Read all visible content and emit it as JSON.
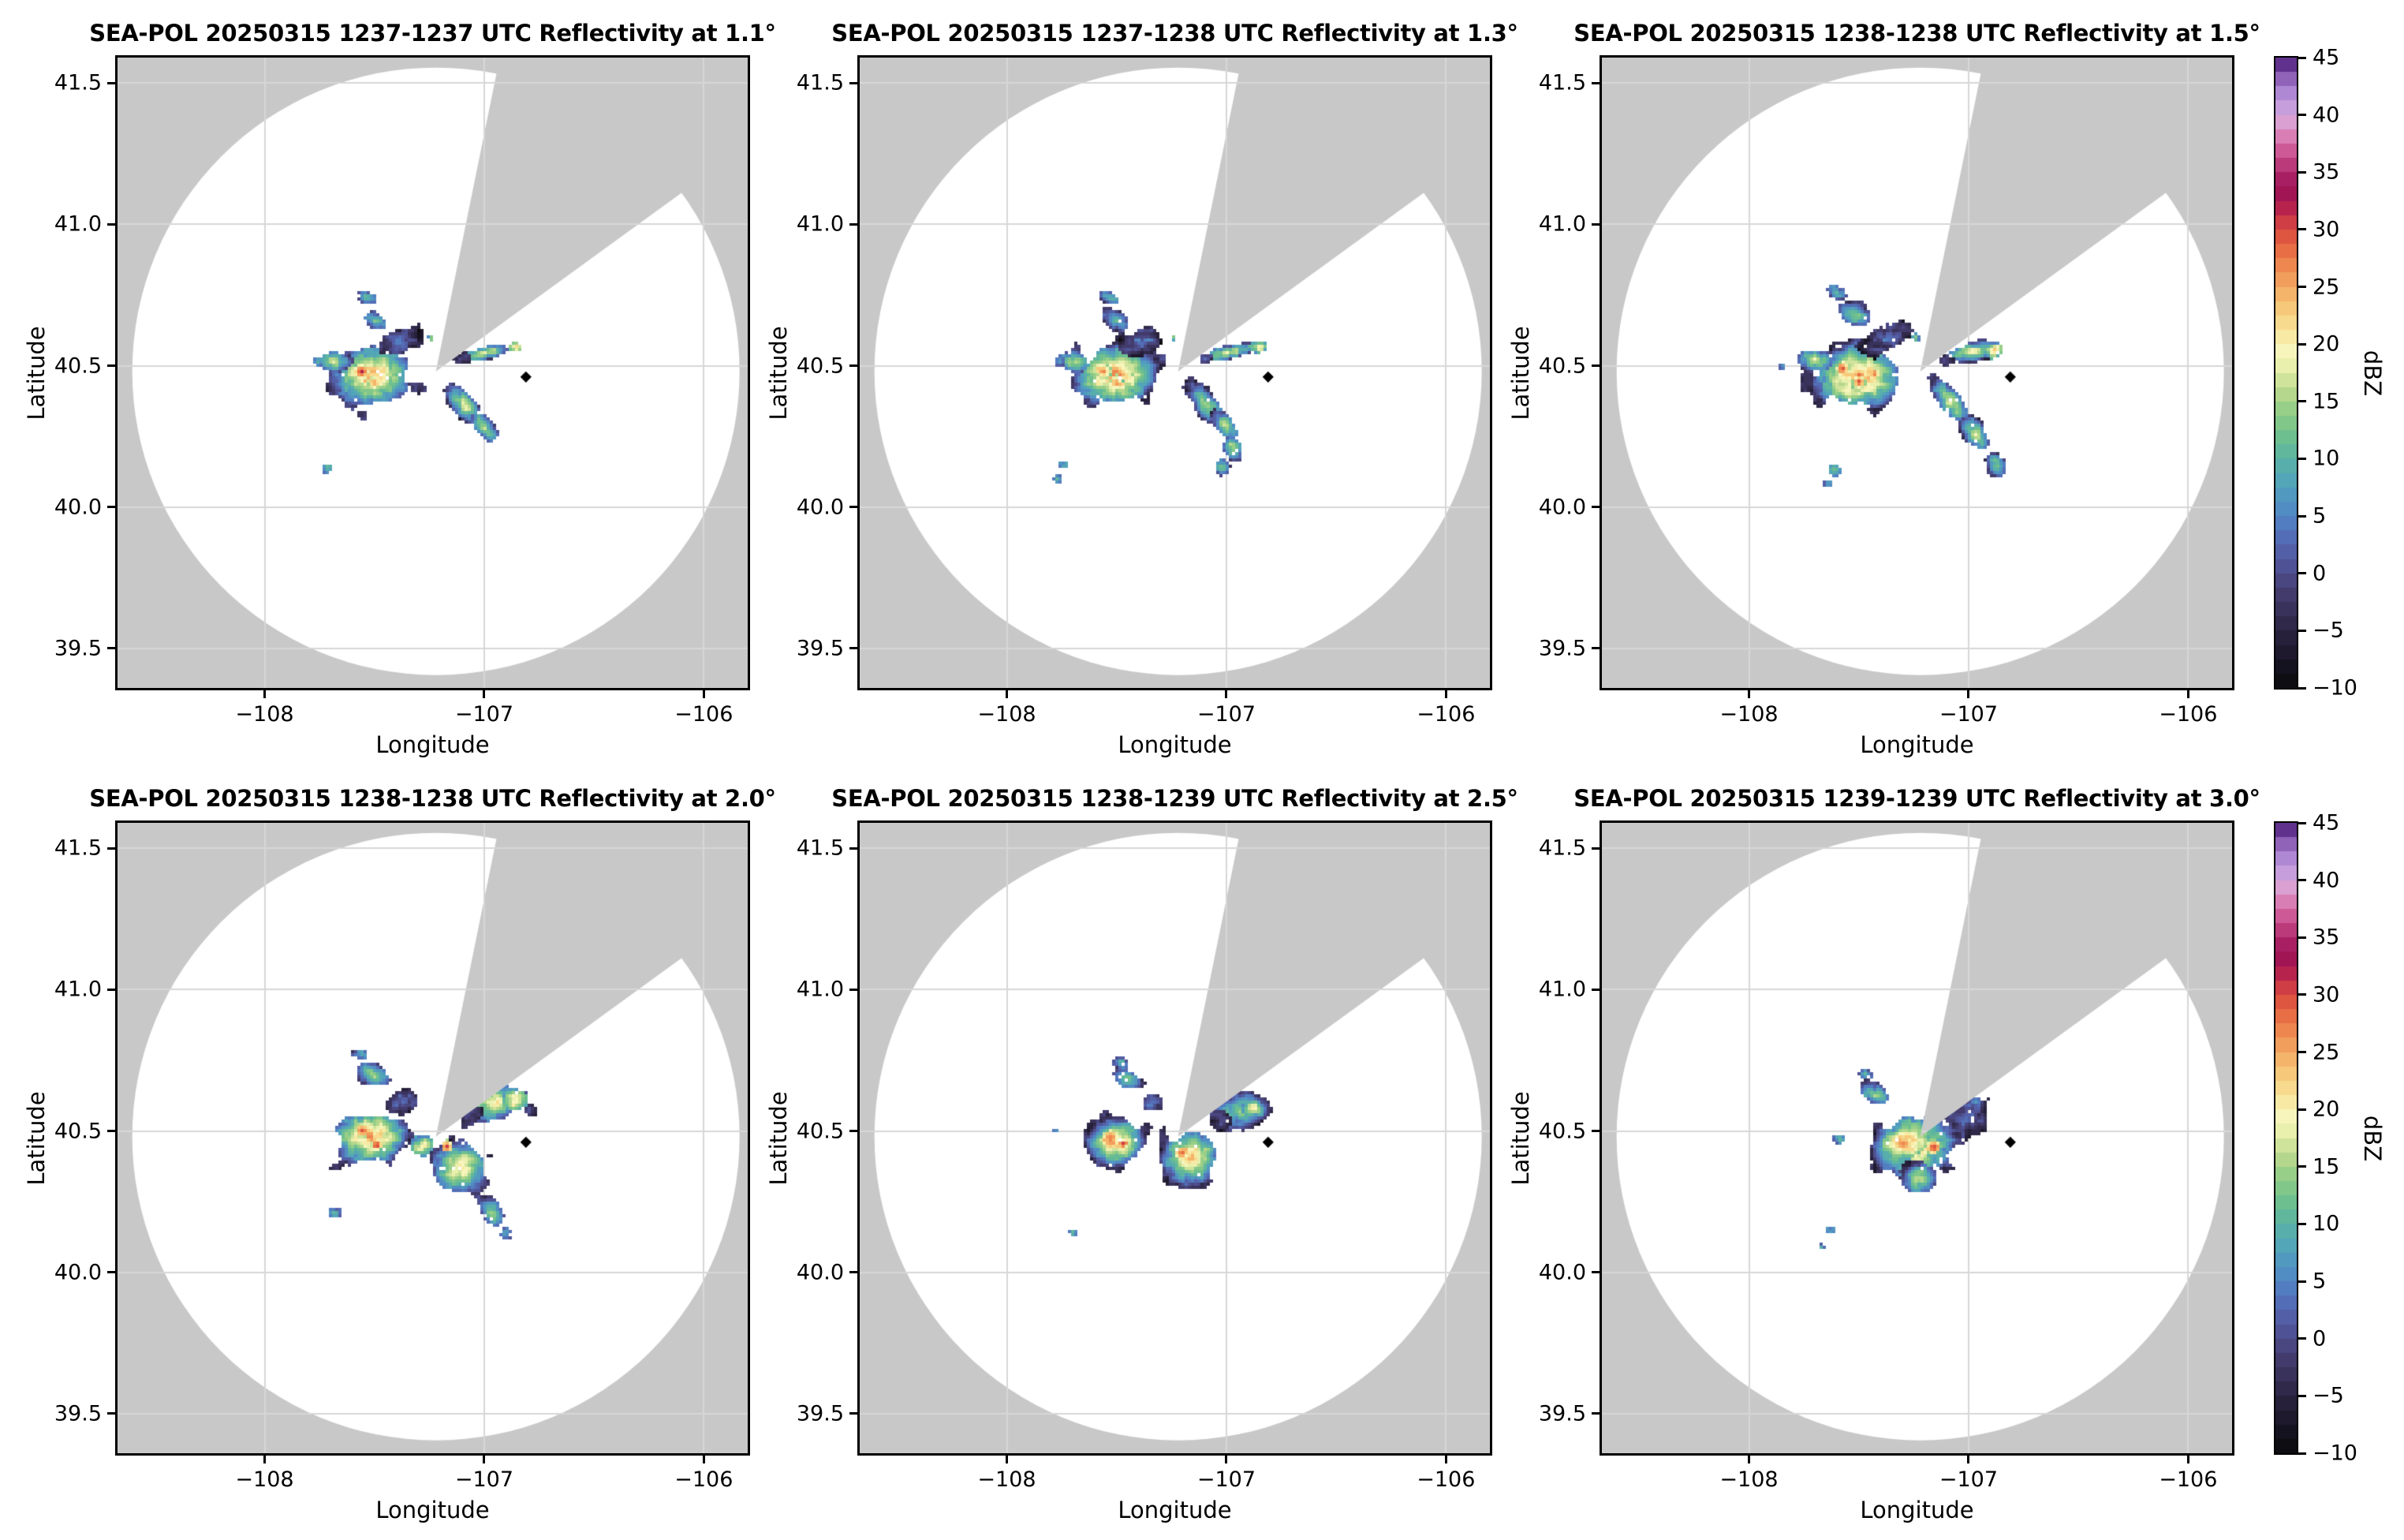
{
  "figure": {
    "background": "#ffffff",
    "outside_scan_color": "#c8c8c8",
    "grid_color": "#d7d7d7",
    "border_color": "#000000",
    "marker_color": "#000000"
  },
  "chart_data": {
    "type": "heatmap",
    "description": "2x3 grid of SEA-POL radar PPI reflectivity maps at increasing elevation angles; white circle is the scanned area on a gray background with a gray blocked sector to the north-northeast; scattered convective echoes west and southeast of a black site marker.",
    "axes": {
      "xlabel": "Longitude",
      "ylabel": "Latitude",
      "xlim": [
        -108.67,
        -105.8
      ],
      "ylim": [
        39.36,
        41.59
      ],
      "xticks": [
        {
          "v": -108,
          "label": "−108"
        },
        {
          "v": -107,
          "label": "−107"
        },
        {
          "v": -106,
          "label": "−106"
        }
      ],
      "yticks": [
        {
          "v": 39.5,
          "label": "39.5"
        },
        {
          "v": 40.0,
          "label": "40.0"
        },
        {
          "v": 40.5,
          "label": "40.5"
        },
        {
          "v": 41.0,
          "label": "41.0"
        },
        {
          "v": 41.5,
          "label": "41.5"
        }
      ],
      "grid": true
    },
    "radar": {
      "center_lon": -107.22,
      "center_lat": 40.48,
      "scan_radius_px": 385,
      "blocked_sector_azimuth_deg": [
        11.5,
        54
      ],
      "site_marker_lon": -106.81,
      "site_marker_lat": 40.46
    },
    "colormap": {
      "vmin": -10,
      "vmax": 45,
      "band_step": 1.25,
      "stops": [
        [
          -10,
          "#0a0a0a"
        ],
        [
          -8,
          "#161221"
        ],
        [
          -6,
          "#241e35"
        ],
        [
          -4,
          "#332b4e"
        ],
        [
          -2,
          "#413a69"
        ],
        [
          0,
          "#4d4b8b"
        ],
        [
          2,
          "#5360a8"
        ],
        [
          4,
          "#5379c0"
        ],
        [
          6,
          "#5090c4"
        ],
        [
          8,
          "#52a4b9"
        ],
        [
          10,
          "#5bb3a3"
        ],
        [
          12,
          "#6fc08e"
        ],
        [
          14,
          "#90cc86"
        ],
        [
          16,
          "#bcda8e"
        ],
        [
          18,
          "#e8eeaa"
        ],
        [
          19.5,
          "#f8f6bd"
        ],
        [
          21,
          "#f8e69c"
        ],
        [
          23,
          "#f6cb7c"
        ],
        [
          25,
          "#f3a962"
        ],
        [
          27,
          "#ed854e"
        ],
        [
          29,
          "#e25c3e"
        ],
        [
          30.5,
          "#d23f44"
        ],
        [
          32,
          "#b3224f"
        ],
        [
          33.5,
          "#9c1157"
        ],
        [
          35,
          "#b02b6c"
        ],
        [
          36.5,
          "#c94f8e"
        ],
        [
          38,
          "#d97bb2"
        ],
        [
          39.5,
          "#d9a3d4"
        ],
        [
          41,
          "#bf9cdf"
        ],
        [
          42.5,
          "#a379cc"
        ],
        [
          43.7,
          "#7e4fa8"
        ],
        [
          44.5,
          "#5b2d89"
        ],
        [
          45,
          "#3c1161"
        ]
      ]
    },
    "colorbar": {
      "label": "dBZ",
      "ticks": [
        {
          "v": 45,
          "label": "45"
        },
        {
          "v": 40,
          "label": "40"
        },
        {
          "v": 35,
          "label": "35"
        },
        {
          "v": 30,
          "label": "30"
        },
        {
          "v": 25,
          "label": "25"
        },
        {
          "v": 20,
          "label": "20"
        },
        {
          "v": 15,
          "label": "15"
        },
        {
          "v": 10,
          "label": "10"
        },
        {
          "v": 5,
          "label": "5"
        },
        {
          "v": 0,
          "label": "0"
        },
        {
          "v": -5,
          "label": "−5"
        },
        {
          "v": -10,
          "label": "−10"
        }
      ]
    },
    "blob_format": [
      "lon",
      "lat",
      "rx_deg",
      "ry_deg",
      "rot_deg",
      "peak_dbz",
      "fringe_dbz"
    ],
    "panels": [
      {
        "title": "SEA-POL 20250315 1237-1237 UTC Reflectivity at 1.1°",
        "elevation_deg": 1.1,
        "time_utc": "1237-1237",
        "date": "20250315",
        "seed": 11,
        "blobs": [
          [
            -107.51,
            40.465,
            0.2,
            0.115,
            -5,
            26,
            -3
          ],
          [
            -107.56,
            40.48,
            0.035,
            0.028,
            0,
            31,
            14
          ],
          [
            -107.5,
            40.44,
            0.03,
            0.024,
            0,
            30,
            14
          ],
          [
            -107.69,
            40.515,
            0.085,
            0.04,
            5,
            17,
            -2
          ],
          [
            -107.39,
            40.585,
            0.1,
            0.05,
            -25,
            4,
            -6
          ],
          [
            -107.5,
            40.66,
            0.065,
            0.032,
            25,
            13,
            -2
          ],
          [
            -107.53,
            40.74,
            0.05,
            0.022,
            20,
            12,
            -1
          ],
          [
            -107.76,
            40.515,
            0.022,
            0.018,
            0,
            9,
            2
          ],
          [
            -107.0,
            40.545,
            0.135,
            0.024,
            -12,
            19,
            -2
          ],
          [
            -107.09,
            40.525,
            0.035,
            0.022,
            -10,
            2,
            -5
          ],
          [
            -106.86,
            40.565,
            0.033,
            0.02,
            -10,
            22,
            8
          ],
          [
            -107.09,
            40.36,
            0.055,
            0.095,
            -38,
            18,
            -3
          ],
          [
            -107.0,
            40.285,
            0.05,
            0.075,
            -40,
            16,
            -3
          ],
          [
            -107.71,
            40.14,
            0.03,
            0.02,
            0,
            10,
            3
          ],
          [
            -107.24,
            40.6,
            0.016,
            0.014,
            0,
            14,
            6
          ]
        ]
      },
      {
        "title": "SEA-POL 20250315 1237-1238 UTC Reflectivity at 1.3°",
        "elevation_deg": 1.3,
        "time_utc": "1237-1238",
        "date": "20250315",
        "seed": 22,
        "blobs": [
          [
            -107.51,
            40.465,
            0.2,
            0.115,
            -5,
            27,
            -3
          ],
          [
            -107.56,
            40.48,
            0.035,
            0.028,
            0,
            31,
            14
          ],
          [
            -107.5,
            40.44,
            0.03,
            0.024,
            0,
            30,
            14
          ],
          [
            -107.69,
            40.515,
            0.085,
            0.04,
            5,
            17,
            -2
          ],
          [
            -107.39,
            40.585,
            0.11,
            0.05,
            -25,
            4,
            -6
          ],
          [
            -107.5,
            40.66,
            0.07,
            0.034,
            25,
            13,
            -2
          ],
          [
            -107.53,
            40.74,
            0.05,
            0.022,
            20,
            12,
            -1
          ],
          [
            -107.76,
            40.515,
            0.022,
            0.018,
            0,
            9,
            2
          ],
          [
            -107.0,
            40.545,
            0.135,
            0.026,
            -12,
            19,
            -2
          ],
          [
            -107.09,
            40.525,
            0.035,
            0.022,
            -10,
            2,
            -5
          ],
          [
            -106.85,
            40.565,
            0.035,
            0.022,
            -10,
            23,
            8
          ],
          [
            -107.09,
            40.36,
            0.055,
            0.095,
            -38,
            18,
            -3
          ],
          [
            -107.0,
            40.285,
            0.05,
            0.075,
            -40,
            16,
            -3
          ],
          [
            -106.97,
            40.21,
            0.05,
            0.05,
            -30,
            16,
            -2
          ],
          [
            -107.02,
            40.145,
            0.035,
            0.028,
            0,
            12,
            0
          ],
          [
            -107.74,
            40.15,
            0.025,
            0.018,
            0,
            9,
            2
          ],
          [
            -107.77,
            40.1,
            0.02,
            0.015,
            0,
            8,
            2
          ],
          [
            -107.24,
            40.6,
            0.016,
            0.014,
            0,
            14,
            6
          ]
        ]
      },
      {
        "title": "SEA-POL 20250315 1238-1238 UTC Reflectivity at 1.5°",
        "elevation_deg": 1.5,
        "time_utc": "1238-1238",
        "date": "20250315",
        "seed": 33,
        "blobs": [
          [
            -107.5,
            40.46,
            0.215,
            0.125,
            -8,
            27,
            -3
          ],
          [
            -107.57,
            40.49,
            0.034,
            0.027,
            0,
            31,
            14
          ],
          [
            -107.5,
            40.44,
            0.03,
            0.024,
            0,
            31,
            14
          ],
          [
            -107.43,
            40.47,
            0.025,
            0.02,
            0,
            29,
            14
          ],
          [
            -107.7,
            40.52,
            0.09,
            0.042,
            5,
            17,
            -2
          ],
          [
            -107.37,
            40.6,
            0.115,
            0.055,
            -25,
            3,
            -6
          ],
          [
            -107.52,
            40.68,
            0.08,
            0.04,
            25,
            14,
            -2
          ],
          [
            -107.6,
            40.76,
            0.05,
            0.025,
            20,
            11,
            -1
          ],
          [
            -106.98,
            40.55,
            0.15,
            0.035,
            -12,
            20,
            -3
          ],
          [
            -107.1,
            40.52,
            0.045,
            0.028,
            -10,
            1,
            -5
          ],
          [
            -106.88,
            40.555,
            0.04,
            0.024,
            -10,
            24,
            10
          ],
          [
            -107.08,
            40.37,
            0.06,
            0.1,
            -38,
            19,
            -3
          ],
          [
            -106.97,
            40.26,
            0.055,
            0.08,
            -40,
            17,
            -3
          ],
          [
            -106.87,
            40.15,
            0.045,
            0.05,
            -35,
            14,
            -2
          ],
          [
            -107.61,
            40.13,
            0.03,
            0.02,
            0,
            10,
            3
          ],
          [
            -107.64,
            40.08,
            0.02,
            0.015,
            0,
            8,
            2
          ],
          [
            -107.85,
            40.5,
            0.02,
            0.015,
            0,
            8,
            2
          ],
          [
            -107.24,
            40.6,
            0.016,
            0.014,
            0,
            14,
            6
          ]
        ]
      },
      {
        "title": "SEA-POL 20250315 1238-1238 UTC Reflectivity at 2.0°",
        "elevation_deg": 2.0,
        "time_utc": "1238-1238",
        "date": "20250315",
        "seed": 44,
        "blobs": [
          [
            -106.95,
            40.6,
            0.16,
            0.07,
            -15,
            20,
            -3
          ],
          [
            -106.86,
            40.605,
            0.06,
            0.038,
            -15,
            22,
            8
          ],
          [
            -107.06,
            40.565,
            0.05,
            0.035,
            -15,
            1,
            -5
          ],
          [
            -106.79,
            40.575,
            0.03,
            0.02,
            0,
            2,
            -4
          ],
          [
            -107.52,
            40.48,
            0.185,
            0.105,
            -8,
            26,
            -3
          ],
          [
            -107.56,
            40.5,
            0.03,
            0.025,
            0,
            31,
            15
          ],
          [
            -107.49,
            40.45,
            0.028,
            0.022,
            0,
            30,
            15
          ],
          [
            -107.38,
            40.6,
            0.1,
            0.05,
            -22,
            3,
            -6
          ],
          [
            -107.51,
            40.7,
            0.09,
            0.04,
            25,
            15,
            -2
          ],
          [
            -107.56,
            40.77,
            0.04,
            0.02,
            20,
            10,
            0
          ],
          [
            -107.28,
            40.445,
            0.055,
            0.035,
            -30,
            20,
            6
          ],
          [
            -107.11,
            40.37,
            0.145,
            0.1,
            -35,
            22,
            -3
          ],
          [
            -107.17,
            40.445,
            0.025,
            0.02,
            0,
            30,
            18
          ],
          [
            -106.96,
            40.21,
            0.055,
            0.065,
            -35,
            15,
            -2
          ],
          [
            -106.9,
            40.14,
            0.03,
            0.028,
            0,
            10,
            0
          ],
          [
            -107.68,
            40.21,
            0.03,
            0.02,
            0,
            10,
            2
          ]
        ]
      },
      {
        "title": "SEA-POL 20250315 1238-1239 UTC Reflectivity at 2.5°",
        "elevation_deg": 2.5,
        "time_utc": "1238-1239",
        "date": "20250315",
        "seed": 55,
        "blobs": [
          [
            -106.94,
            40.57,
            0.15,
            0.065,
            -12,
            15,
            -4
          ],
          [
            -106.88,
            40.58,
            0.05,
            0.03,
            0,
            20,
            6
          ],
          [
            -107.03,
            40.54,
            0.05,
            0.038,
            0,
            0,
            -5
          ],
          [
            -107.5,
            40.46,
            0.14,
            0.09,
            -8,
            25,
            -3
          ],
          [
            -107.53,
            40.47,
            0.05,
            0.038,
            0,
            28,
            14
          ],
          [
            -107.47,
            40.455,
            0.02,
            0.015,
            0,
            31,
            20
          ],
          [
            -107.16,
            40.41,
            0.14,
            0.105,
            -30,
            24,
            -3
          ],
          [
            -107.2,
            40.425,
            0.032,
            0.025,
            0,
            31,
            16
          ],
          [
            -107.45,
            40.68,
            0.075,
            0.035,
            20,
            14,
            -2
          ],
          [
            -107.34,
            40.6,
            0.05,
            0.035,
            -20,
            3,
            -5
          ],
          [
            -107.48,
            40.74,
            0.04,
            0.02,
            20,
            10,
            0
          ],
          [
            -107.7,
            40.14,
            0.022,
            0.015,
            0,
            9,
            2
          ],
          [
            -107.78,
            40.5,
            0.015,
            0.012,
            0,
            7,
            2
          ]
        ]
      },
      {
        "title": "SEA-POL 20250315 1239-1239 UTC Reflectivity at 3.0°",
        "elevation_deg": 3.0,
        "time_utc": "1239-1239",
        "date": "20250315",
        "seed": 66,
        "blobs": [
          [
            -107.0,
            40.56,
            0.105,
            0.085,
            -20,
            2,
            -6
          ],
          [
            -106.97,
            40.6,
            0.04,
            0.03,
            0,
            6,
            -2
          ],
          [
            -107.25,
            40.45,
            0.2,
            0.12,
            -15,
            25,
            -3
          ],
          [
            -107.28,
            40.46,
            0.1,
            0.05,
            -15,
            26,
            12
          ],
          [
            -107.16,
            40.44,
            0.035,
            0.028,
            0,
            30,
            16
          ],
          [
            -107.22,
            40.33,
            0.09,
            0.06,
            -20,
            18,
            -3
          ],
          [
            -107.43,
            40.63,
            0.08,
            0.04,
            25,
            14,
            -2
          ],
          [
            -107.47,
            40.7,
            0.035,
            0.02,
            20,
            10,
            0
          ],
          [
            -107.59,
            40.47,
            0.03,
            0.02,
            0,
            9,
            1
          ],
          [
            -107.63,
            40.15,
            0.025,
            0.018,
            0,
            9,
            2
          ],
          [
            -107.67,
            40.09,
            0.02,
            0.014,
            0,
            8,
            2
          ]
        ]
      }
    ]
  }
}
